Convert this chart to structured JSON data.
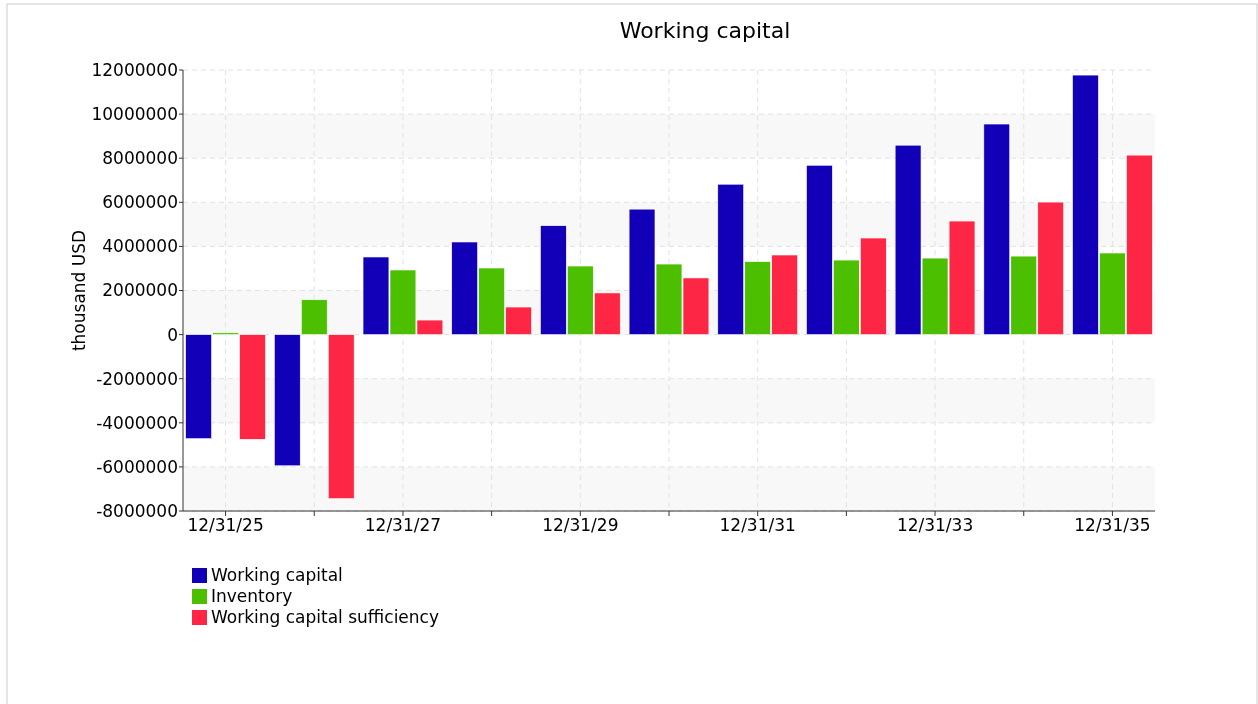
{
  "chart_data": {
    "type": "bar",
    "title": "Working capital",
    "ylabel": "thousand USD",
    "categories": [
      "12/31/25",
      null,
      "12/31/27",
      null,
      "12/31/29",
      null,
      "12/31/31",
      null,
      "12/31/33",
      null,
      "12/31/35"
    ],
    "series": [
      {
        "name": "Working capital",
        "color": "#1100b8",
        "values": [
          -4720000,
          -5950000,
          3520000,
          4200000,
          4940000,
          5690000,
          6820000,
          7680000,
          8590000,
          9550000,
          11770000
        ]
      },
      {
        "name": "Inventory",
        "color": "#4bbf00",
        "values": [
          80000,
          1580000,
          2930000,
          3020000,
          3110000,
          3200000,
          3310000,
          3380000,
          3470000,
          3560000,
          3700000
        ]
      },
      {
        "name": "Working capital sufficiency",
        "color": "#fe2645",
        "values": [
          -4750000,
          -7440000,
          660000,
          1250000,
          1890000,
          2570000,
          3610000,
          4380000,
          5150000,
          6010000,
          8140000
        ]
      }
    ],
    "ylim": [
      -8000000,
      12000000
    ],
    "yticks": [
      -8000000,
      -6000000,
      -4000000,
      -2000000,
      0,
      2000000,
      4000000,
      6000000,
      8000000,
      10000000,
      12000000
    ],
    "grid": true,
    "legend": "bottom left"
  }
}
